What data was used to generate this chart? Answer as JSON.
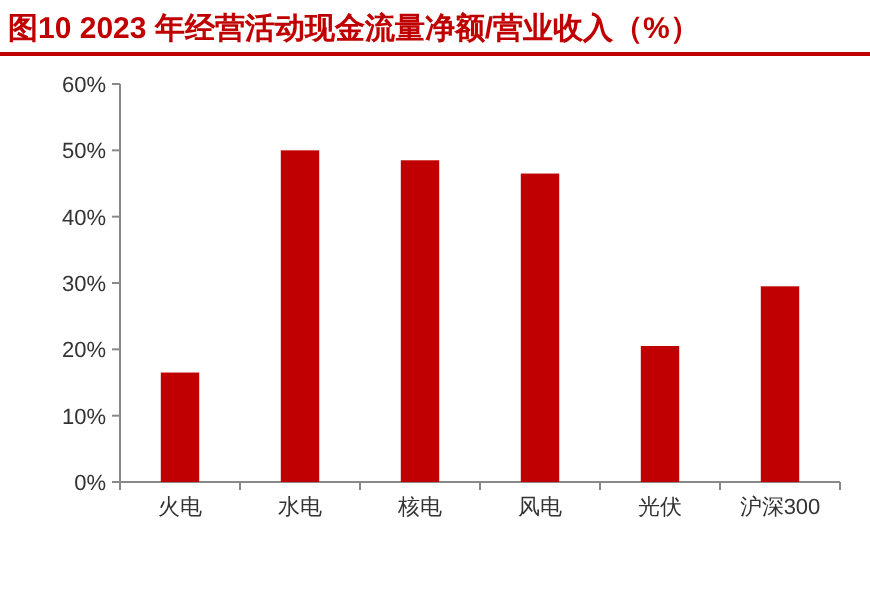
{
  "chart_data": {
    "type": "bar",
    "title": "图10  2023 年经营活动现金流量净额/营业收入（%）",
    "categories": [
      "火电",
      "水电",
      "核电",
      "风电",
      "光伏",
      "沪深300"
    ],
    "values": [
      16.5,
      50,
      48.5,
      46.5,
      20.5,
      29.5
    ],
    "color": "#c00000",
    "ylim": [
      0,
      60
    ],
    "yticks": [
      {
        "value": 0,
        "label": "0%"
      },
      {
        "value": 10,
        "label": "10%"
      },
      {
        "value": 20,
        "label": "20%"
      },
      {
        "value": 30,
        "label": "30%"
      },
      {
        "value": 40,
        "label": "40%"
      },
      {
        "value": 50,
        "label": "50%"
      },
      {
        "value": 60,
        "label": "60%"
      }
    ],
    "grid": false
  }
}
